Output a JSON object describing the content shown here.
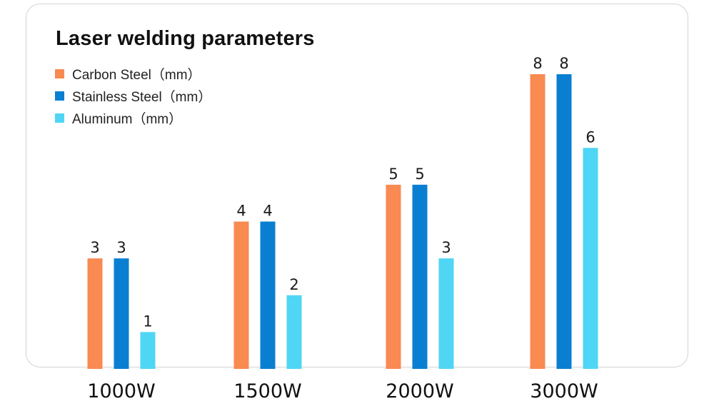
{
  "chart_data": {
    "type": "bar",
    "title": "Laser welding parameters",
    "categories": [
      "1000W",
      "1500W",
      "2000W",
      "3000W"
    ],
    "series": [
      {
        "name": "Carbon Steel（mm）",
        "color": "#f88a52",
        "values": [
          3,
          4,
          5,
          8
        ]
      },
      {
        "name": "Stainless Steel（mm）",
        "color": "#0a7fd2",
        "values": [
          3,
          4,
          5,
          8
        ]
      },
      {
        "name": "Aluminum（mm）",
        "color": "#4fd6f4",
        "values": [
          1,
          2,
          3,
          6
        ]
      }
    ],
    "xlabel": "",
    "ylabel": "",
    "ylim": [
      0,
      8
    ],
    "grid": false,
    "legend": "top-left"
  }
}
